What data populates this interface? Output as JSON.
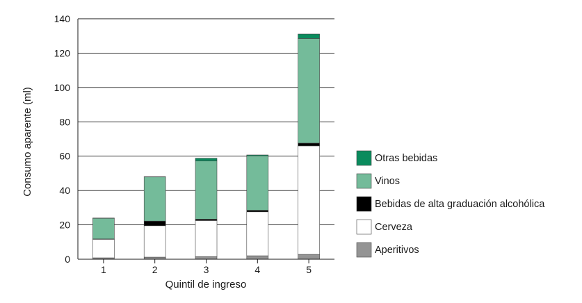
{
  "chart_data": {
    "type": "bar",
    "stacked": true,
    "xlabel": "Quintil de ingreso",
    "ylabel": "Consumo aparente (ml)",
    "categories": [
      "1",
      "2",
      "3",
      "4",
      "5"
    ],
    "ylim": [
      0,
      140
    ],
    "yticks": [
      0,
      20,
      40,
      60,
      80,
      100,
      120,
      140
    ],
    "grid": true,
    "legend_position": "right",
    "series": [
      {
        "name": "Aperitivos",
        "color": "#949494",
        "values": [
          0.8,
          1.2,
          1.5,
          2.0,
          2.8
        ]
      },
      {
        "name": "Cerveza",
        "color": "#ffffff",
        "values": [
          10.8,
          18.3,
          21.0,
          25.6,
          63.2
        ]
      },
      {
        "name": "Bebidas de alta graduación alcohólica",
        "color": "#000000",
        "values": [
          0.2,
          2.7,
          0.8,
          0.9,
          1.6
        ]
      },
      {
        "name": "Vinos",
        "color": "#74bb9a",
        "values": [
          12.0,
          25.7,
          33.9,
          31.7,
          60.9
        ]
      },
      {
        "name": "Otras bebidas",
        "color": "#0a8b5d",
        "values": [
          0.2,
          0.2,
          1.6,
          0.5,
          2.6
        ]
      }
    ],
    "legend_order": [
      "Otras bebidas",
      "Vinos",
      "Bebidas de alta graduación alcohólica",
      "Cerveza",
      "Aperitivos"
    ]
  }
}
